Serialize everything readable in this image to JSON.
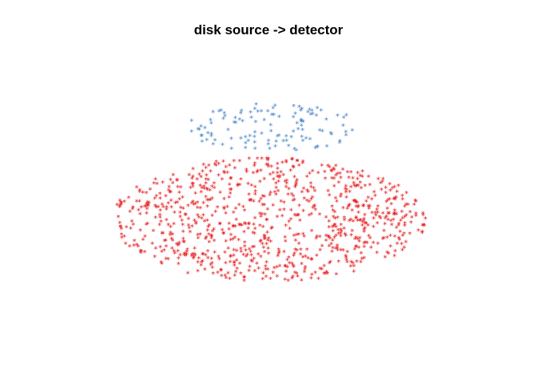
{
  "chart_data": {
    "type": "scatter",
    "title": "disk source -> detector",
    "xlabel": "",
    "ylabel": "",
    "axes_visible": false,
    "grid": false,
    "legend": "none",
    "xlim": [
      -1.1,
      1.1
    ],
    "ylim": [
      -1.1,
      1.1
    ],
    "marker": "*",
    "series": [
      {
        "color": "#e41a1c",
        "count": 900,
        "distribution": {
          "shape": "ellipse",
          "center": [
            0,
            -0.15
          ],
          "radius_x": 1.0,
          "radius_y": 0.45
        }
      },
      {
        "color": "#4a86c8",
        "count": 120,
        "distribution": {
          "shape": "ellipse",
          "center": [
            0.02,
            0.52
          ],
          "radius_x": 0.55,
          "radius_y": 0.18
        }
      }
    ]
  }
}
